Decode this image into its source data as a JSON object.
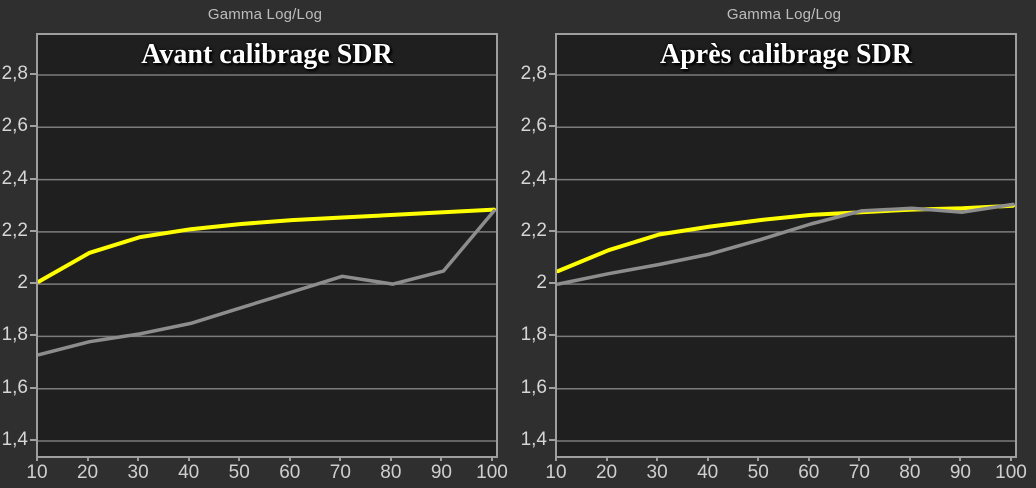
{
  "window": {
    "background": "#2f2f2f"
  },
  "style": {
    "plot_background": "#1f1f1f",
    "frame_color": "#9e9e9e",
    "gridline_color": "#7c7c7c",
    "tick_label_color": "#d6d6d6",
    "header_color": "#bdbdbd",
    "title_color": "#ffffff",
    "yellow_curve_color": "#ffff00",
    "gray_curve_color": "#8d8d8d"
  },
  "chart_data": [
    {
      "type": "line",
      "header": "Gamma Log/Log",
      "title": "Avant calibrage SDR",
      "x": [
        10,
        20,
        30,
        40,
        50,
        60,
        70,
        80,
        90,
        100
      ],
      "x_tick_labels": [
        "10",
        "20",
        "30",
        "40",
        "50",
        "60",
        "70",
        "80",
        "90",
        "100"
      ],
      "y_ticks": [
        {
          "value": 2.8,
          "label": "2,8"
        },
        {
          "value": 2.6,
          "label": "2,6"
        },
        {
          "value": 2.4,
          "label": "2,4"
        },
        {
          "value": 2.2,
          "label": "2,2"
        },
        {
          "value": 2.0,
          "label": "2"
        },
        {
          "value": 1.8,
          "label": "1,8"
        },
        {
          "value": 1.6,
          "label": "1,6"
        },
        {
          "value": 1.4,
          "label": "1,4"
        }
      ],
      "xlim": [
        10,
        100
      ],
      "ylim": [
        1.4,
        2.8
      ],
      "grid": true,
      "legend": "none",
      "series": [
        {
          "name": "yellow-target-gamma",
          "color": "#ffff00",
          "width": 4,
          "values": [
            2.01,
            2.12,
            2.18,
            2.21,
            2.23,
            2.245,
            2.255,
            2.265,
            2.275,
            2.285
          ]
        },
        {
          "name": "gray-measured-gamma",
          "color": "#8d8d8d",
          "width": 3.5,
          "values": [
            1.73,
            1.78,
            1.81,
            1.85,
            1.91,
            1.97,
            2.03,
            2.0,
            2.05,
            2.28
          ]
        }
      ]
    },
    {
      "type": "line",
      "header": "Gamma Log/Log",
      "title": "Après calibrage SDR",
      "x": [
        10,
        20,
        30,
        40,
        50,
        60,
        70,
        80,
        90,
        100
      ],
      "x_tick_labels": [
        "10",
        "20",
        "30",
        "40",
        "50",
        "60",
        "70",
        "80",
        "90",
        "100"
      ],
      "y_ticks": [
        {
          "value": 2.8,
          "label": "2,8"
        },
        {
          "value": 2.6,
          "label": "2,6"
        },
        {
          "value": 2.4,
          "label": "2,4"
        },
        {
          "value": 2.2,
          "label": "2,2"
        },
        {
          "value": 2.0,
          "label": "2"
        },
        {
          "value": 1.8,
          "label": "1,8"
        },
        {
          "value": 1.6,
          "label": "1,6"
        },
        {
          "value": 1.4,
          "label": "1,4"
        }
      ],
      "xlim": [
        10,
        100
      ],
      "ylim": [
        1.4,
        2.8
      ],
      "grid": true,
      "legend": "none",
      "series": [
        {
          "name": "yellow-target-gamma",
          "color": "#ffff00",
          "width": 4,
          "values": [
            2.05,
            2.13,
            2.19,
            2.22,
            2.245,
            2.265,
            2.275,
            2.285,
            2.29,
            2.3
          ]
        },
        {
          "name": "gray-measured-gamma",
          "color": "#8d8d8d",
          "width": 3.5,
          "values": [
            2.0,
            2.04,
            2.075,
            2.115,
            2.17,
            2.23,
            2.28,
            2.29,
            2.275,
            2.305
          ]
        }
      ]
    }
  ]
}
